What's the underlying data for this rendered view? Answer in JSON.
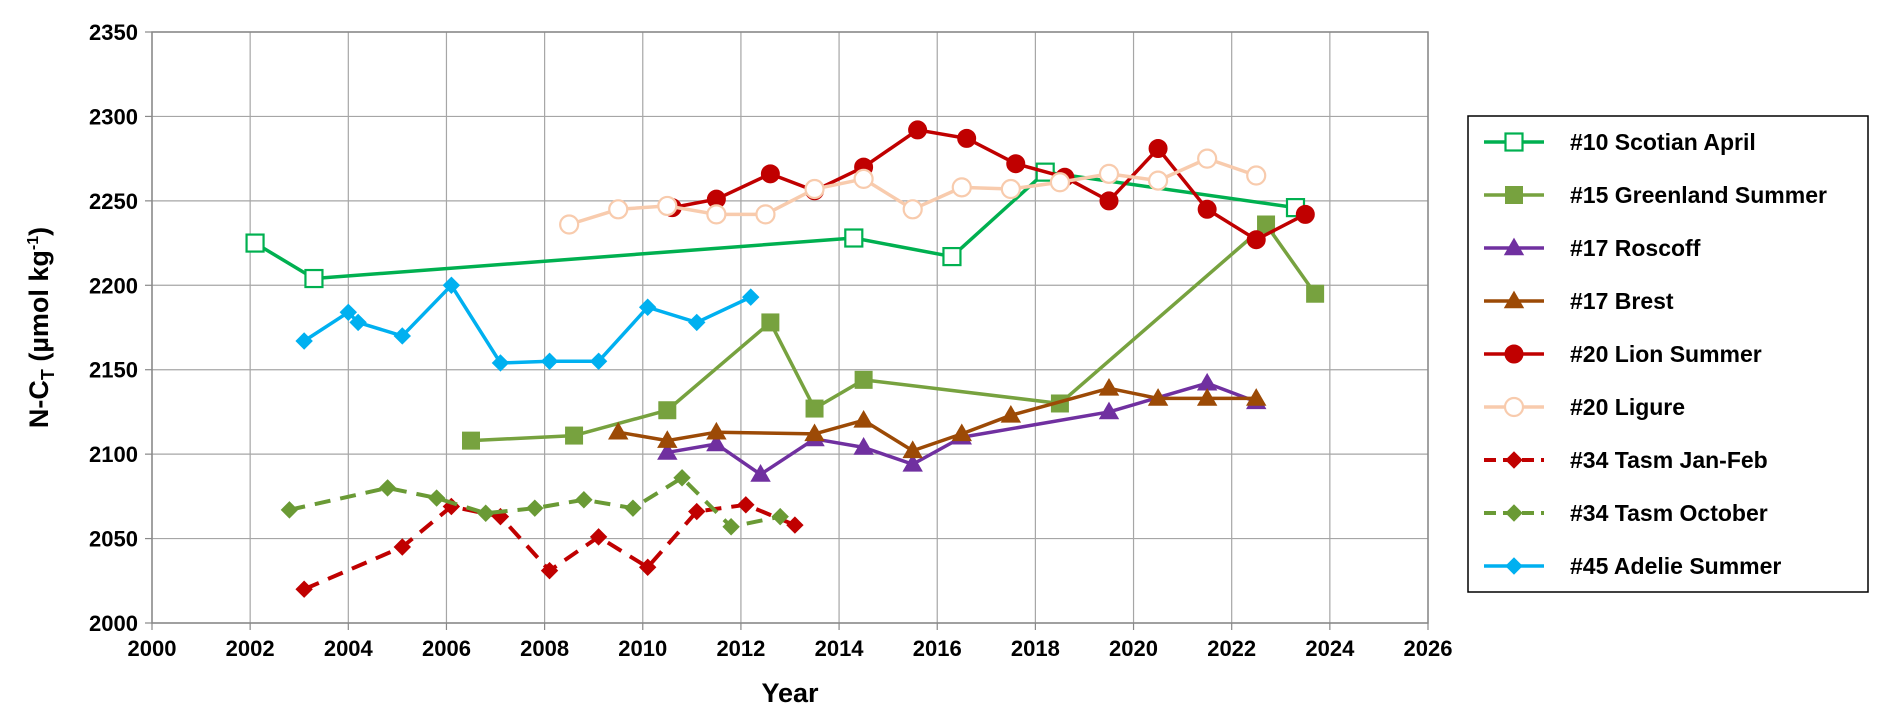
{
  "chart_data": {
    "type": "line",
    "title": "",
    "xlabel": "Year",
    "ylabel_main": "N-C",
    "ylabel_sub": "T",
    "ylabel_units": " (µmol kg",
    "ylabel_sup": "-1",
    "ylabel_close": ")",
    "xlim": [
      2000,
      2026
    ],
    "ylim": [
      2000,
      2350
    ],
    "xticks": [
      "2000",
      "2002",
      "2004",
      "2006",
      "2008",
      "2010",
      "2012",
      "2014",
      "2016",
      "2018",
      "2020",
      "2022",
      "2024",
      "2026"
    ],
    "yticks": [
      "2000",
      "2050",
      "2100",
      "2150",
      "2200",
      "2250",
      "2300",
      "2350"
    ],
    "grid": true,
    "legend_position": "right",
    "series": [
      {
        "name": "#10 Scotian April",
        "color": "#00b050",
        "marker": "square-open",
        "dash": false,
        "x": [
          2002.1,
          2003.3,
          2014.3,
          2016.3,
          2018.2,
          2023.3
        ],
        "y": [
          2225,
          2204,
          2228,
          2217,
          2267,
          2246
        ]
      },
      {
        "name": "#15 Greenland Summer",
        "color": "#77a23f",
        "marker": "square",
        "dash": false,
        "x": [
          2006.5,
          2008.6,
          2010.5,
          2012.6,
          2013.5,
          2014.5,
          2018.5,
          2022.7,
          2023.7
        ],
        "y": [
          2108,
          2111,
          2126,
          2178,
          2127,
          2144,
          2130,
          2236,
          2195
        ]
      },
      {
        "name": "#17 Roscoff",
        "color": "#7030a0",
        "marker": "triangle",
        "dash": false,
        "x": [
          2010.5,
          2011.5,
          2012.4,
          2013.5,
          2014.5,
          2015.5,
          2016.5,
          2019.5,
          2021.5,
          2022.5
        ],
        "y": [
          2101,
          2106,
          2088,
          2109,
          2104,
          2094,
          2110,
          2125,
          2142,
          2131
        ]
      },
      {
        "name": "#17 Brest",
        "color": "#9c4a06",
        "marker": "triangle",
        "dash": false,
        "x": [
          2009.5,
          2010.5,
          2011.5,
          2013.5,
          2014.5,
          2015.5,
          2016.5,
          2017.5,
          2019.5,
          2020.5,
          2021.5,
          2022.5
        ],
        "y": [
          2113,
          2108,
          2113,
          2112,
          2120,
          2102,
          2112,
          2123,
          2139,
          2133,
          2133,
          2133
        ]
      },
      {
        "name": "#20 Lion Summer",
        "color": "#c00000",
        "marker": "circle",
        "dash": false,
        "x": [
          2010.6,
          2011.5,
          2012.6,
          2013.5,
          2014.5,
          2015.6,
          2016.6,
          2017.6,
          2018.6,
          2019.5,
          2020.5,
          2021.5,
          2022.5,
          2023.5
        ],
        "y": [
          2246,
          2251,
          2266,
          2256,
          2270,
          2292,
          2287,
          2272,
          2264,
          2250,
          2281,
          2245,
          2227,
          2242
        ]
      },
      {
        "name": "#20 Ligure",
        "color": "#f8cbad",
        "marker": "circle-open",
        "dash": false,
        "x": [
          2008.5,
          2009.5,
          2010.5,
          2011.5,
          2012.5,
          2013.5,
          2014.5,
          2015.5,
          2016.5,
          2017.5,
          2018.5,
          2019.5,
          2020.5,
          2021.5,
          2022.5
        ],
        "y": [
          2236,
          2245,
          2247,
          2242,
          2242,
          2257,
          2263,
          2245,
          2258,
          2257,
          2261,
          2266,
          2262,
          2275,
          2265
        ]
      },
      {
        "name": "#34 Tasm Jan-Feb",
        "color": "#c00000",
        "marker": "diamond",
        "dash": true,
        "x": [
          2003.1,
          2005.1,
          2006.1,
          2007.1,
          2008.1,
          2009.1,
          2010.1,
          2011.1,
          2012.1,
          2013.1
        ],
        "y": [
          2020,
          2045,
          2069,
          2063,
          2031,
          2051,
          2033,
          2066,
          2070,
          2058
        ]
      },
      {
        "name": "#34 Tasm October",
        "color": "#6a9a35",
        "marker": "diamond",
        "dash": true,
        "x": [
          2002.8,
          2004.8,
          2005.8,
          2006.8,
          2007.8,
          2008.8,
          2009.8,
          2010.8,
          2011.8,
          2012.8
        ],
        "y": [
          2067,
          2080,
          2074,
          2065,
          2068,
          2073,
          2068,
          2086,
          2057,
          2063
        ]
      },
      {
        "name": "#45 Adelie Summer",
        "color": "#00b0f0",
        "marker": "diamond",
        "dash": false,
        "x": [
          2003.1,
          2004.0,
          2004.2,
          2005.1,
          2006.1,
          2007.1,
          2008.1,
          2009.1,
          2010.1,
          2011.1,
          2012.2
        ],
        "y": [
          2167,
          2184,
          2178,
          2170,
          2200,
          2154,
          2155,
          2155,
          2187,
          2178,
          2193
        ]
      }
    ]
  }
}
